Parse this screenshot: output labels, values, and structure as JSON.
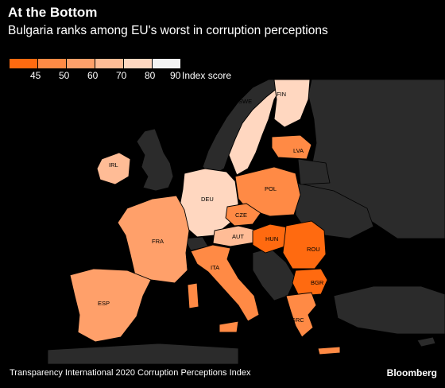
{
  "header": {
    "title": "At the Bottom",
    "subtitle": "Bulgaria ranks among EU's worst in corruption perceptions"
  },
  "legend": {
    "ticks": [
      "45",
      "50",
      "60",
      "70",
      "80",
      "90"
    ],
    "unit": "Index score",
    "colors": [
      "#ff6a10",
      "#ff8a45",
      "#ffa06a",
      "#ffbc96",
      "#ffd7c0",
      "#f3f3f3"
    ]
  },
  "countries": [
    {
      "code": "SWE",
      "score": 85
    },
    {
      "code": "FIN",
      "score": 85
    },
    {
      "code": "LVA",
      "score": 57
    },
    {
      "code": "IRL",
      "score": 72
    },
    {
      "code": "DEU",
      "score": 80
    },
    {
      "code": "POL",
      "score": 56
    },
    {
      "code": "CZE",
      "score": 54
    },
    {
      "code": "AUT",
      "score": 76
    },
    {
      "code": "FRA",
      "score": 69
    },
    {
      "code": "HUN",
      "score": 44
    },
    {
      "code": "ROU",
      "score": 44
    },
    {
      "code": "ITA",
      "score": 53
    },
    {
      "code": "BGR",
      "score": 44
    },
    {
      "code": "ESP",
      "score": 62
    },
    {
      "code": "GRC",
      "score": 50
    }
  ],
  "footer": {
    "source": "Transparency International 2020 Corruption Perceptions Index",
    "brand": "Bloomberg"
  }
}
